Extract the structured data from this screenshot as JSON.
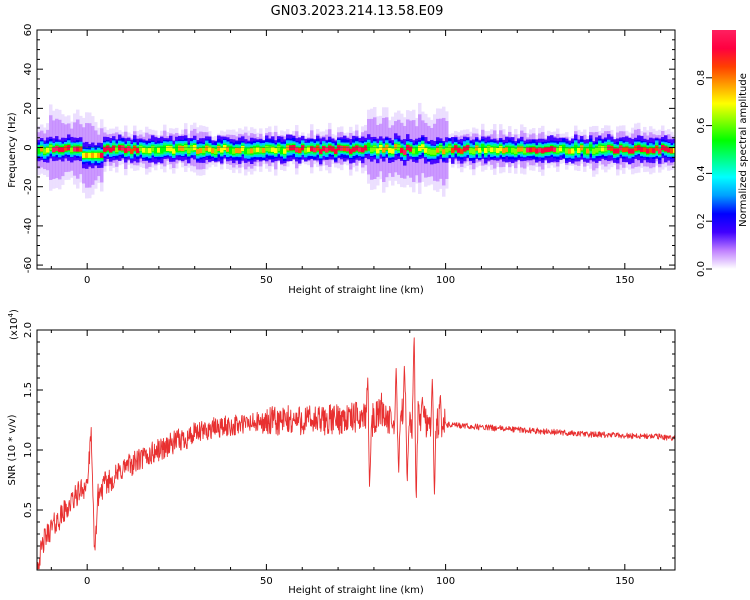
{
  "title": "GN03.2023.214.13.58.E09",
  "chart_data": [
    {
      "type": "heatmap",
      "xlabel": "Height of straight line (km)",
      "ylabel": "Frequency (Hz)",
      "xlim": [
        -14,
        164
      ],
      "ylim": [
        -62,
        60
      ],
      "x_ticks": [
        0,
        50,
        100,
        150
      ],
      "y_ticks": [
        -60,
        -40,
        -20,
        0,
        20,
        40,
        60
      ],
      "colorbar": {
        "label": "Normalized spectral amplitude",
        "range": [
          0.0,
          1.0
        ],
        "ticks": [
          "0.0",
          "0.2",
          "0.4",
          "0.6",
          "0.8"
        ],
        "colors": [
          "#ffffff",
          "#c080ff",
          "#4000ff",
          "#0000ff",
          "#00a0ff",
          "#00ffff",
          "#00ff80",
          "#00ff00",
          "#80ff00",
          "#ffff00",
          "#ffa000",
          "#ff4000",
          "#ff0040",
          "#ff2060"
        ]
      },
      "band_center_hz": 0,
      "band_halfwidth_hz": 6,
      "strong_segments_km": [
        [
          -10,
          -5
        ],
        [
          -4,
          -2
        ],
        [
          3,
          7
        ],
        [
          8,
          14
        ],
        [
          56,
          60
        ],
        [
          62,
          78
        ],
        [
          87,
          90
        ],
        [
          101,
          106
        ],
        [
          122,
          130
        ],
        [
          145,
          163
        ]
      ]
    },
    {
      "type": "line",
      "xlabel": "Height of straight line (km)",
      "ylabel": "SNR (10 * v/v)",
      "y_multiplier": "(x10",
      "y_multiplier_exp": "4",
      "y_multiplier_close": ")",
      "xlim": [
        -14,
        164
      ],
      "ylim": [
        0,
        2.0
      ],
      "x_ticks": [
        0,
        50,
        100,
        150
      ],
      "y_ticks": [
        0.5,
        1.0,
        1.5,
        2.0
      ],
      "y_tick_labels": [
        "0.5",
        "1.0",
        "1.5",
        "2.0"
      ],
      "line_color": "#e83030",
      "series": [
        {
          "values_by_x": [
            [
              -14,
              0.02
            ],
            [
              -12,
              0.25
            ],
            [
              -10,
              0.35
            ],
            [
              -8,
              0.42
            ],
            [
              -6,
              0.5
            ],
            [
              -4,
              0.58
            ],
            [
              -2,
              0.66
            ],
            [
              0,
              0.72
            ],
            [
              1.2,
              1.13
            ],
            [
              2,
              0.1
            ],
            [
              3,
              0.62
            ],
            [
              5,
              0.72
            ],
            [
              8,
              0.78
            ],
            [
              10,
              0.85
            ],
            [
              15,
              0.92
            ],
            [
              20,
              1.0
            ],
            [
              25,
              1.07
            ],
            [
              30,
              1.13
            ],
            [
              35,
              1.18
            ],
            [
              40,
              1.2
            ],
            [
              45,
              1.22
            ],
            [
              50,
              1.23
            ],
            [
              55,
              1.24
            ],
            [
              60,
              1.25
            ],
            [
              65,
              1.24
            ],
            [
              70,
              1.26
            ],
            [
              75,
              1.27
            ],
            [
              78,
              1.3
            ],
            [
              80,
              1.24
            ],
            [
              82,
              1.35
            ],
            [
              85,
              1.2
            ],
            [
              88,
              1.3
            ],
            [
              90,
              1.2
            ],
            [
              92,
              1.28
            ],
            [
              95,
              1.24
            ],
            [
              98,
              1.23
            ],
            [
              100,
              1.21
            ],
            [
              105,
              1.2
            ],
            [
              110,
              1.19
            ],
            [
              120,
              1.17
            ],
            [
              130,
              1.15
            ],
            [
              140,
              1.13
            ],
            [
              150,
              1.12
            ],
            [
              160,
              1.11
            ],
            [
              164,
              1.1
            ]
          ],
          "spikes": [
            [
              78.3,
              1.62
            ],
            [
              78.8,
              0.65
            ],
            [
              86.2,
              1.68
            ],
            [
              86.9,
              0.8
            ],
            [
              88.5,
              1.72
            ],
            [
              89.3,
              0.72
            ],
            [
              91.2,
              2.0
            ],
            [
              91.8,
              0.55
            ],
            [
              93.5,
              1.45
            ],
            [
              96.3,
              1.6
            ],
            [
              96.9,
              0.6
            ],
            [
              98.5,
              1.48
            ]
          ]
        }
      ]
    }
  ]
}
